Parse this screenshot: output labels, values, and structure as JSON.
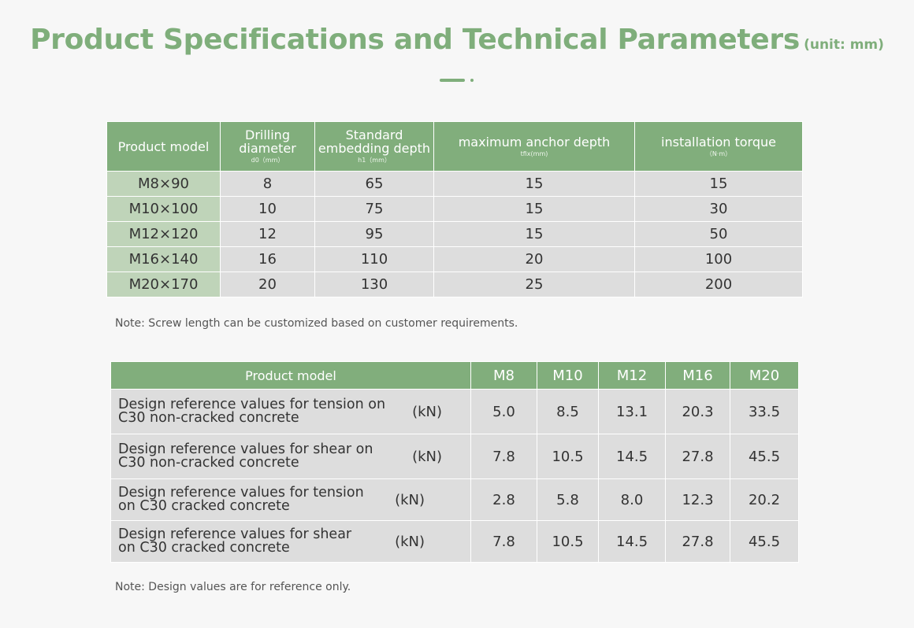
{
  "header": {
    "title": "Product Specifications and Technical Parameters",
    "unit": "(unit: mm)"
  },
  "spec_table": {
    "headers": [
      {
        "label": "Product model",
        "sub": ""
      },
      {
        "label": "Drilling diameter",
        "sub": "d0（mm）"
      },
      {
        "label": "Standard embedding depth",
        "sub": "h1（mm）"
      },
      {
        "label": "maximum anchor depth",
        "sub": "tfix(mm)"
      },
      {
        "label": "installation torque",
        "sub": "（N·m）"
      }
    ],
    "rows": [
      [
        "M8×90",
        "8",
        "65",
        "15",
        "15"
      ],
      [
        "M10×100",
        "10",
        "75",
        "15",
        "30"
      ],
      [
        "M12×120",
        "12",
        "95",
        "15",
        "50"
      ],
      [
        "M16×140",
        "16",
        "110",
        "20",
        "100"
      ],
      [
        "M20×170",
        "20",
        "130",
        "25",
        "200"
      ]
    ]
  },
  "note1": "Note: Screw length can be customized based on customer requirements.",
  "strength_table": {
    "header_label": "Product model",
    "models": [
      "M8",
      "M10",
      "M12",
      "M16",
      "M20"
    ],
    "rows": [
      {
        "line1": "Design reference values for tension on",
        "line2": "C30 non-cracked concrete",
        "unit": "(kN)",
        "values": [
          "5.0",
          "8.5",
          "13.1",
          "20.3",
          "33.5"
        ]
      },
      {
        "line1": "Design reference values for shear on",
        "line2": "C30 non-cracked concrete",
        "unit": "(kN)",
        "values": [
          "7.8",
          "10.5",
          "14.5",
          "27.8",
          "45.5"
        ]
      },
      {
        "line1": "Design reference values for tension",
        "line2": "on C30 cracked concrete",
        "unit": "(kN)",
        "values": [
          "2.8",
          "5.8",
          "8.0",
          "12.3",
          "20.2"
        ]
      },
      {
        "line1": "Design reference values for shear",
        "line2": "on C30 cracked concrete",
        "unit": "(kN)",
        "values": [
          "7.8",
          "10.5",
          "14.5",
          "27.8",
          "45.5"
        ]
      }
    ]
  },
  "note2": "Note: Design values are for reference only.",
  "colors": {
    "accent": "#7fae7b",
    "header_bg": "#81ae7c",
    "cell_bg": "#dddddd",
    "model_bg": "#bfd4b9"
  }
}
